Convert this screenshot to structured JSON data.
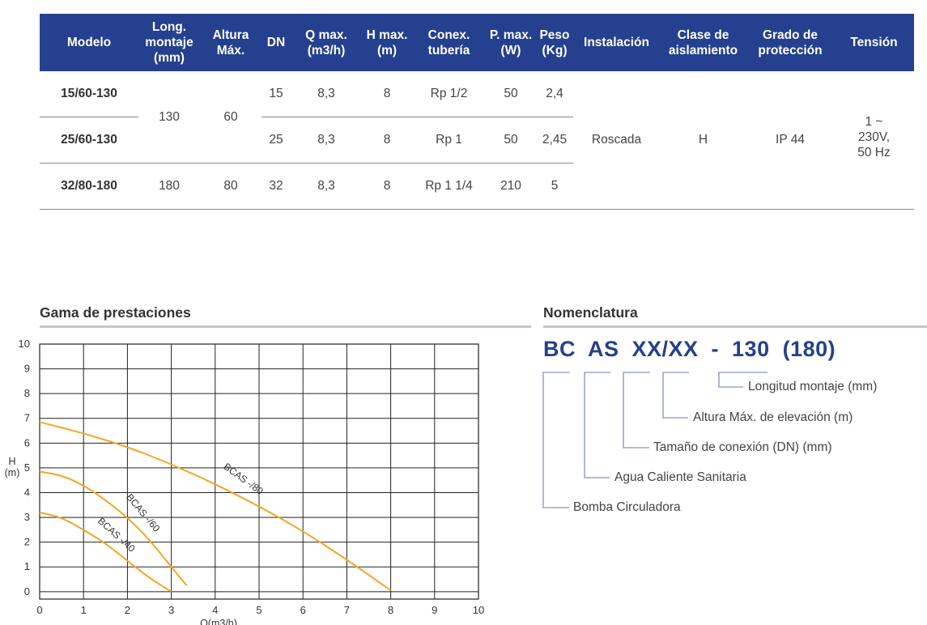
{
  "table": {
    "headers": [
      {
        "key": "modelo",
        "label": "Modelo"
      },
      {
        "key": "long",
        "label": "Long.\nmontaje\n(mm)"
      },
      {
        "key": "altura",
        "label": "Altura\nMáx."
      },
      {
        "key": "dn",
        "label": "DN"
      },
      {
        "key": "qmax",
        "label": "Q max.\n(m3/h)"
      },
      {
        "key": "hmax",
        "label": "H max.\n(m)"
      },
      {
        "key": "conex",
        "label": "Conex.\ntubería"
      },
      {
        "key": "pmax",
        "label": "P. max.\n(W)"
      },
      {
        "key": "peso",
        "label": "Peso\n(Kg)"
      },
      {
        "key": "instalacion",
        "label": "Instalación"
      },
      {
        "key": "clase",
        "label": "Clase de\naislamiento"
      },
      {
        "key": "grado",
        "label": "Grado de\nprotección"
      },
      {
        "key": "tension",
        "label": "Tensión"
      }
    ],
    "rows": [
      {
        "modelo": "15/60-130",
        "dn": "15",
        "qmax": "8,3",
        "hmax": "8",
        "conex": "Rp 1/2",
        "pmax": "50",
        "peso": "2,4"
      },
      {
        "modelo": "25/60-130",
        "dn": "25",
        "qmax": "8,3",
        "hmax": "8",
        "conex": "Rp 1",
        "pmax": "50",
        "peso": "2,45"
      },
      {
        "modelo": "32/80-180",
        "long": "180",
        "altura": "80",
        "dn": "32",
        "qmax": "8,3",
        "hmax": "8",
        "conex": "Rp 1 1/4",
        "pmax": "210",
        "peso": "5"
      }
    ],
    "merged": {
      "long_130": "130",
      "altura_60": "60",
      "instalacion": "Roscada",
      "clase": "H",
      "grado": "IP 44",
      "tension": "1 ~\n230V,\n50 Hz"
    }
  },
  "chart_section": {
    "title": "Gama de prestaciones"
  },
  "nomenclature_section": {
    "title": "Nomenclatura",
    "code": "BC  AS  XX/XX  -  130  (180)",
    "labels": [
      "Longitud montaje (mm)",
      "Altura Máx. de elevación (m)",
      "Tamaño de conexión (DN) (mm)",
      "Agua Caliente Sanitaria",
      "Bomba Circuladora"
    ]
  },
  "colors": {
    "header_bg": "#24408e",
    "curve": "#f5a623",
    "grid": "#222222",
    "title_bar": "#c3c6da",
    "bracket": "#9aa6cc",
    "code": "#24408e"
  },
  "chart_data": {
    "type": "line",
    "title": "",
    "xlabel": "Q(m3/h)",
    "ylabel": "H\n(m)",
    "xlim": [
      0,
      10
    ],
    "ylim": [
      0,
      10
    ],
    "x_ticks": [
      "0",
      "1",
      "2",
      "3",
      "4",
      "5",
      "6",
      "7",
      "8",
      "9",
      "10"
    ],
    "y_ticks": [
      "10",
      "9",
      "8",
      "7",
      "6",
      "5",
      "4",
      "3",
      "2",
      "1",
      "0"
    ],
    "y_tick_values": [
      10,
      9,
      8,
      7,
      6,
      5,
      4,
      3,
      2,
      1,
      0
    ],
    "x_tick_values": [
      0,
      1,
      2,
      3,
      4,
      5,
      6,
      7,
      8,
      9,
      10
    ],
    "y_zero_at_grid": 0.3,
    "grid": true,
    "series": [
      {
        "name": "BCAS -/80",
        "points": [
          [
            0,
            6.85
          ],
          [
            1,
            6.4
          ],
          [
            2,
            5.85
          ],
          [
            3,
            5.15
          ],
          [
            4,
            4.35
          ],
          [
            5,
            3.45
          ],
          [
            6,
            2.45
          ],
          [
            7,
            1.3
          ],
          [
            8,
            0.05
          ]
        ],
        "label_at": [
          4.6,
          4.45
        ],
        "label_angle": 36
      },
      {
        "name": "BCAS -/60",
        "points": [
          [
            0,
            4.85
          ],
          [
            0.5,
            4.7
          ],
          [
            1,
            4.3
          ],
          [
            1.5,
            3.7
          ],
          [
            2,
            3.0
          ],
          [
            2.5,
            2.1
          ],
          [
            3,
            1.0
          ],
          [
            3.35,
            0.25
          ]
        ],
        "label_at": [
          2.3,
          3.1
        ],
        "label_angle": 50
      },
      {
        "name": "BCAS -/40",
        "points": [
          [
            0,
            3.2
          ],
          [
            0.5,
            3.0
          ],
          [
            1,
            2.5
          ],
          [
            1.5,
            1.95
          ],
          [
            2,
            1.25
          ],
          [
            2.5,
            0.55
          ],
          [
            3,
            0.0
          ]
        ],
        "label_at": [
          1.7,
          2.2
        ],
        "label_angle": 42
      }
    ]
  }
}
